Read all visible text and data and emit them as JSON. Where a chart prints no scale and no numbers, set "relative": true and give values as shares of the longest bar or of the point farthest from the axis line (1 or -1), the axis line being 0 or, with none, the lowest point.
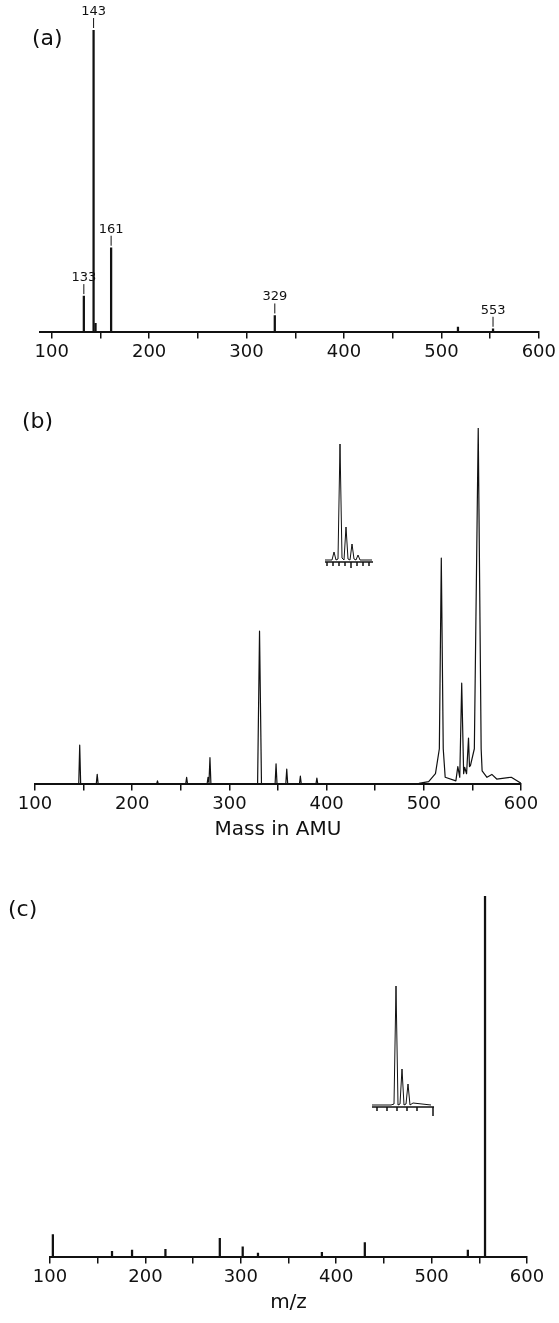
{
  "chart_data": [
    {
      "type": "bar",
      "title": "(a)",
      "relative": true,
      "color": "#111111",
      "x": [
        133,
        143,
        145,
        161,
        329,
        517,
        553
      ],
      "values": [
        0.12,
        1,
        0.03,
        0.28,
        0.056,
        0.018,
        0.012
      ],
      "xlim": [
        88,
        600
      ],
      "xticks": [
        100,
        {
          "value": 150,
          "label": null
        },
        200,
        {
          "value": 250,
          "label": null
        },
        300,
        {
          "value": 350,
          "label": null
        },
        400,
        {
          "value": 450,
          "label": null
        },
        500,
        {
          "value": 550,
          "label": null
        },
        600
      ],
      "annotations": [
        {
          "text": "133",
          "x": 133,
          "y": 0.12
        },
        {
          "text": "143",
          "x": 143,
          "y": 1
        },
        {
          "text": "161",
          "x": 161,
          "y": 0.28
        },
        {
          "text": "329",
          "x": 329,
          "y": 0.056
        },
        {
          "text": "553",
          "x": 553,
          "y": 0.012
        }
      ],
      "grid": false,
      "legend": false
    },
    {
      "type": "line",
      "title": "(b)",
      "xlabel": "Mass in AMU",
      "relative": true,
      "color": "#111111",
      "x": [
        100,
        145,
        146,
        147,
        163,
        164,
        165,
        225,
        226,
        227,
        255,
        256,
        257,
        277,
        278,
        279,
        280,
        281,
        329,
        331,
        333,
        347,
        348,
        349,
        358,
        359,
        360,
        372,
        373,
        374,
        389,
        390,
        391,
        495,
        505,
        512,
        516,
        518,
        520,
        522,
        533,
        535,
        537,
        539,
        541,
        542,
        544,
        546,
        547,
        548,
        552,
        556,
        559,
        560,
        565,
        570,
        575,
        590,
        600
      ],
      "values": [
        0,
        0,
        0.11,
        0,
        0,
        0.028,
        0,
        0,
        0.01,
        0,
        0,
        0.02,
        0,
        0,
        0.02,
        0.005,
        0.075,
        0,
        0,
        0.43,
        0,
        0,
        0.058,
        0,
        0,
        0.043,
        0,
        0,
        0.023,
        0,
        0,
        0.018,
        0,
        0.003,
        0.008,
        0.03,
        0.1,
        0.635,
        0.1,
        0.02,
        0.01,
        0.05,
        0.02,
        0.284,
        0.03,
        0.048,
        0.03,
        0.13,
        0.05,
        0.053,
        0.1,
        1,
        0.1,
        0.038,
        0.02,
        0.028,
        0.015,
        0.02,
        0.003
      ],
      "xlim": [
        100,
        600
      ],
      "xticks": [
        100,
        {
          "value": 150,
          "label": null
        },
        200,
        {
          "value": 250,
          "label": null
        },
        300,
        {
          "value": 350,
          "label": null
        },
        400,
        {
          "value": 450,
          "label": null
        },
        500,
        {
          "value": 550,
          "label": null
        },
        600
      ],
      "grid": false,
      "legend": false
    },
    {
      "type": "bar",
      "title": "(c)",
      "xlabel": "m/z",
      "relative": true,
      "color": "#111111",
      "x": [
        103,
        165,
        186,
        221,
        278,
        302,
        318,
        385,
        430,
        538,
        556
      ],
      "values": [
        0.063,
        0.017,
        0.02,
        0.022,
        0.053,
        0.029,
        0.012,
        0.014,
        0.041,
        0.02,
        1
      ],
      "xlim": [
        100,
        600
      ],
      "xticks": [
        100,
        {
          "value": 150,
          "label": null
        },
        200,
        {
          "value": 250,
          "label": null
        },
        300,
        {
          "value": 350,
          "label": null
        },
        400,
        {
          "value": 450,
          "label": null
        },
        500,
        {
          "value": 550,
          "label": null
        },
        600
      ],
      "grid": false,
      "legend": false
    }
  ]
}
